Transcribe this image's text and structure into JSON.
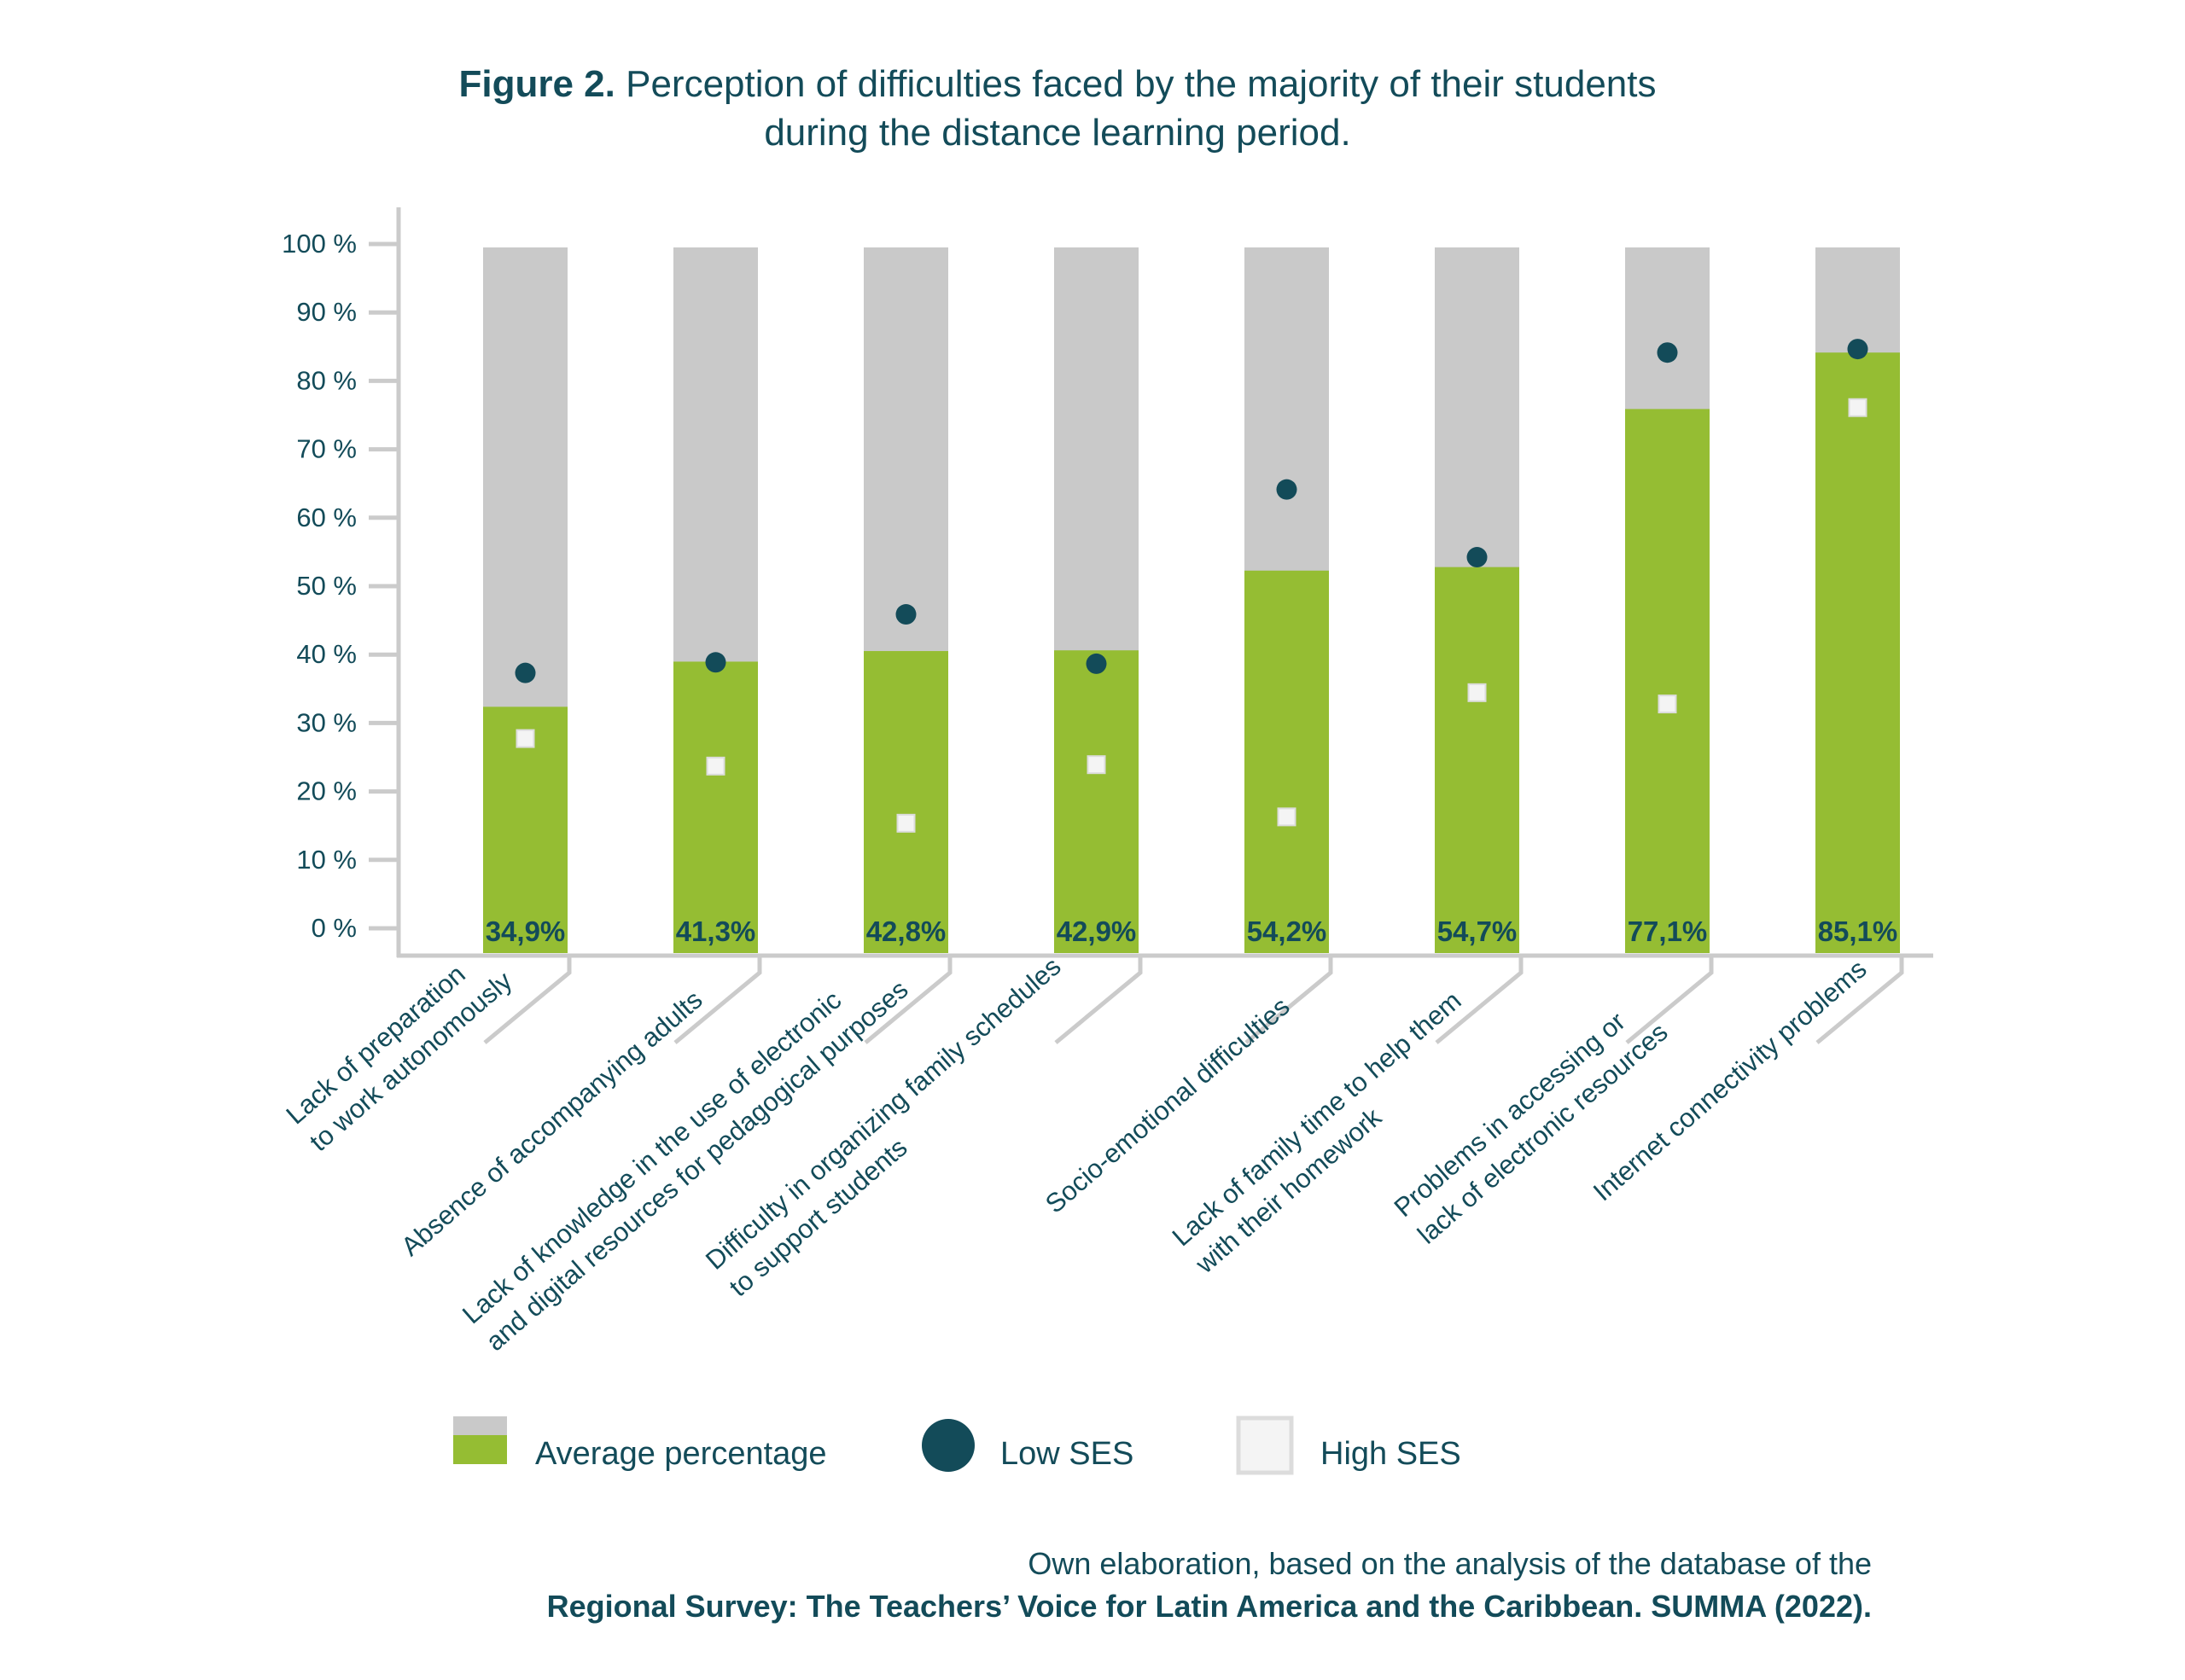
{
  "colors": {
    "text": "#134b59",
    "avg_fill": "#95bd33",
    "remainder_fill": "#c9c9c9",
    "axis": "#cbcbcb",
    "low_ses": "#134b59",
    "high_ses": "#f4f4f4",
    "high_ses_border": "#dcdcdc"
  },
  "title": {
    "prefix": "Figure 2.",
    "line1": " Perception of difficulties faced by the majority of their students",
    "line2": "during the distance learning period."
  },
  "legend": {
    "average": "Average percentage",
    "low": "Low SES",
    "high": "High SES"
  },
  "footer": {
    "line1": "Own elaboration, based on the analysis of the database of the",
    "line2": "Regional Survey: The Teachers’ Voice for Latin America and the Caribbean. SUMMA (2022)."
  },
  "chart_data": {
    "type": "bar",
    "title": "Figure 2. Perception of difficulties faced by the majority of their students during the distance learning period.",
    "xlabel": "",
    "ylabel": "",
    "ylim": [
      0,
      100
    ],
    "yticks": [
      "0 %",
      "10 %",
      "20 %",
      "30 %",
      "40 %",
      "50 %",
      "60 %",
      "70 %",
      "80 %",
      "90 %",
      "100 %"
    ],
    "ytick_values": [
      0,
      10,
      20,
      30,
      40,
      50,
      60,
      70,
      80,
      90,
      100
    ],
    "grid": false,
    "legend_position": "bottom",
    "categories": [
      [
        "Lack of preparation",
        "to work autonomously"
      ],
      [
        "Absence of accompanying adults"
      ],
      [
        "Lack of knowledge in the use of electronic",
        "and digital resources for pedagogical purposes"
      ],
      [
        "Difficulty in organizing family schedules",
        "to support students"
      ],
      [
        "Socio-emotional difficulties"
      ],
      [
        "Lack of family time to help them",
        "with their homework"
      ],
      [
        "Problems in accessing or",
        "lack of electronic resources"
      ],
      [
        "Internet connectivity problems"
      ]
    ],
    "series": [
      {
        "name": "Average percentage",
        "kind": "stacked-bar-to-100",
        "values": [
          34.9,
          41.3,
          42.8,
          42.9,
          54.2,
          54.7,
          77.1,
          85.1
        ],
        "labels": [
          "34,9%",
          "41,3%",
          "42,8%",
          "42,9%",
          "54,2%",
          "54,7%",
          "77,1%",
          "85,1%"
        ]
      },
      {
        "name": "Low SES",
        "kind": "marker-circle",
        "values": [
          39.7,
          41.2,
          48.0,
          41.0,
          65.7,
          56.1,
          85.1,
          85.6
        ]
      },
      {
        "name": "High SES",
        "kind": "marker-square",
        "values": [
          30.4,
          26.5,
          18.4,
          26.7,
          19.3,
          36.9,
          35.3,
          77.3
        ]
      }
    ]
  }
}
